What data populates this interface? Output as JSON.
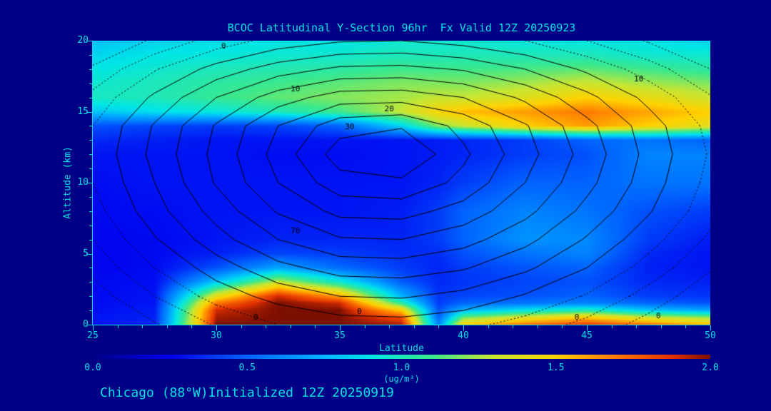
{
  "page": {
    "background": "#000087",
    "text_color": "#00e0e0"
  },
  "title": "BCOC Latitudinal Y-Section 96hr  Fx Valid 12Z 20250923",
  "footer": "Chicago (88°W)Initialized 12Z 20250919",
  "chart_data": {
    "type": "heatmap",
    "title": "BCOC Latitudinal Y-Section 96hr  Fx Valid 12Z 20250923",
    "xlabel": "Latitude",
    "ylabel": "Altitude (km)",
    "xlim": [
      25,
      50
    ],
    "ylim": [
      0,
      20
    ],
    "x_ticks": [
      25,
      30,
      35,
      40,
      45,
      50
    ],
    "y_ticks": [
      0,
      5,
      10,
      15,
      20
    ],
    "x_minor_step": 1,
    "y_minor_step": 1,
    "colorbar": {
      "min": 0,
      "max": 2,
      "ticks": [
        "0.0",
        "0.5",
        "1.0",
        "1.5",
        "2.0"
      ],
      "label": "(ug/m³)"
    },
    "colormap": [
      [
        0.0,
        "#000087"
      ],
      [
        0.125,
        "#0000f0"
      ],
      [
        0.25,
        "#0064ff"
      ],
      [
        0.375,
        "#00b4ff"
      ],
      [
        0.45,
        "#00e6e6"
      ],
      [
        0.55,
        "#3ce88c"
      ],
      [
        0.65,
        "#c8e632"
      ],
      [
        0.75,
        "#ffd200"
      ],
      [
        0.85,
        "#ff7800"
      ],
      [
        0.94,
        "#e13200"
      ],
      [
        1.0,
        "#7d0f00"
      ]
    ],
    "fill": {
      "units": "ug/m3",
      "lats": [
        25,
        27.5,
        30,
        32.5,
        35,
        37.5,
        39,
        40,
        42.5,
        45,
        47.5,
        50
      ],
      "alts": [
        0,
        0.5,
        1,
        1.5,
        2,
        3,
        4,
        5,
        6,
        8,
        10,
        12,
        13,
        14,
        15,
        16,
        17,
        18,
        19,
        20
      ],
      "values": [
        [
          0.3,
          0.35,
          2.0,
          2.0,
          2.0,
          1.95,
          0.6,
          1.5,
          1.7,
          1.85,
          1.7,
          1.55
        ],
        [
          0.3,
          0.33,
          1.95,
          2.0,
          2.0,
          1.8,
          0.5,
          1.15,
          1.35,
          1.5,
          1.3,
          1.2
        ],
        [
          0.28,
          0.32,
          1.9,
          2.0,
          2.0,
          1.5,
          0.45,
          0.75,
          0.9,
          1.0,
          0.8,
          0.7
        ],
        [
          0.28,
          0.3,
          1.7,
          2.0,
          1.9,
          1.05,
          0.4,
          0.5,
          0.55,
          0.6,
          0.5,
          0.45
        ],
        [
          0.27,
          0.3,
          1.4,
          1.9,
          1.6,
          0.75,
          0.38,
          0.42,
          0.45,
          0.5,
          0.4,
          0.38
        ],
        [
          0.27,
          0.28,
          0.8,
          1.3,
          0.95,
          0.48,
          0.35,
          0.38,
          0.42,
          0.45,
          0.35,
          0.33
        ],
        [
          0.26,
          0.27,
          0.45,
          0.7,
          0.52,
          0.4,
          0.34,
          0.4,
          0.46,
          0.5,
          0.33,
          0.3
        ],
        [
          0.26,
          0.27,
          0.33,
          0.42,
          0.4,
          0.36,
          0.36,
          0.45,
          0.55,
          0.6,
          0.35,
          0.3
        ],
        [
          0.26,
          0.27,
          0.3,
          0.34,
          0.34,
          0.34,
          0.4,
          0.5,
          0.65,
          0.62,
          0.4,
          0.32
        ],
        [
          0.27,
          0.28,
          0.3,
          0.3,
          0.3,
          0.32,
          0.4,
          0.5,
          0.6,
          0.55,
          0.45,
          0.4
        ],
        [
          0.28,
          0.3,
          0.3,
          0.3,
          0.3,
          0.3,
          0.34,
          0.4,
          0.5,
          0.5,
          0.55,
          0.55
        ],
        [
          0.3,
          0.3,
          0.3,
          0.28,
          0.28,
          0.3,
          0.32,
          0.34,
          0.4,
          0.45,
          0.6,
          0.6
        ],
        [
          0.35,
          0.33,
          0.3,
          0.3,
          0.3,
          0.3,
          0.32,
          0.34,
          0.4,
          0.5,
          0.55,
          0.5
        ],
        [
          0.45,
          0.42,
          0.4,
          0.42,
          0.5,
          0.85,
          1.2,
          1.3,
          1.5,
          1.62,
          1.5,
          1.4
        ],
        [
          0.8,
          0.88,
          0.92,
          1.0,
          1.1,
          1.3,
          1.48,
          1.55,
          1.62,
          1.7,
          1.6,
          1.5
        ],
        [
          0.98,
          1.0,
          1.08,
          1.15,
          1.2,
          1.25,
          1.3,
          1.3,
          1.38,
          1.5,
          1.42,
          1.32
        ],
        [
          0.95,
          1.0,
          1.05,
          1.1,
          1.15,
          1.2,
          1.2,
          1.2,
          1.25,
          1.32,
          1.25,
          1.2
        ],
        [
          0.9,
          0.95,
          1.0,
          1.02,
          1.05,
          1.1,
          1.1,
          1.1,
          1.12,
          1.15,
          1.1,
          1.05
        ],
        [
          0.85,
          0.9,
          0.92,
          0.95,
          0.95,
          1.0,
          1.0,
          1.0,
          1.0,
          1.0,
          0.95,
          0.95
        ],
        [
          0.8,
          0.85,
          0.88,
          0.9,
          0.9,
          0.95,
          0.95,
          0.95,
          0.92,
          0.9,
          0.9,
          0.85
        ]
      ]
    },
    "contours": {
      "lats": [
        25,
        27.5,
        30,
        32.5,
        35,
        37.5,
        40,
        42.5,
        45,
        47.5,
        50
      ],
      "alts": [
        0,
        2,
        4,
        6,
        8,
        10,
        12,
        14,
        16,
        18,
        20
      ],
      "levels": [
        0,
        10,
        20,
        30,
        40,
        50,
        60,
        70
      ],
      "dashed_levels": [
        -30,
        -20,
        -10
      ],
      "values": [
        [
          -45,
          -31,
          -19,
          -10,
          -5,
          -4,
          -7,
          -14,
          -23,
          -34,
          -47
        ],
        [
          -35,
          -20,
          -6,
          4,
          10,
          11,
          7,
          -1,
          -11,
          -24,
          -37
        ],
        [
          -27,
          -10,
          5,
          17,
          24,
          25,
          21,
          12,
          0,
          -14,
          -29
        ],
        [
          -20,
          -1,
          16,
          30,
          39,
          40,
          34,
          23,
          9,
          -6,
          -22
        ],
        [
          -14,
          6,
          24,
          41,
          53,
          54,
          46,
          33,
          17,
          1,
          -16
        ],
        [
          -10,
          10,
          31,
          50,
          66,
          68,
          57,
          40,
          23,
          5,
          -13
        ],
        [
          -8,
          13,
          33,
          54,
          75,
          80,
          62,
          44,
          26,
          7,
          -11
        ],
        [
          -10,
          11,
          31,
          50,
          66,
          69,
          57,
          41,
          23,
          5,
          -13
        ],
        [
          -17,
          2,
          20,
          35,
          45,
          46,
          40,
          28,
          13,
          -3,
          -19
        ],
        [
          -28,
          -11,
          4,
          15,
          22,
          23,
          19,
          10,
          -2,
          -15,
          -30
        ],
        [
          -43,
          -28,
          -16,
          -6,
          -1,
          0,
          -4,
          -10,
          -20,
          -31,
          -45
        ]
      ],
      "labels": [
        {
          "text": "0",
          "lat": 30.3,
          "alt": 19.6
        },
        {
          "text": "10",
          "lat": 33.2,
          "alt": 16.6
        },
        {
          "text": "20",
          "lat": 37.0,
          "alt": 15.15
        },
        {
          "text": "30",
          "lat": 35.4,
          "alt": 13.9
        },
        {
          "text": "70",
          "lat": 33.2,
          "alt": 6.6
        },
        {
          "text": "10",
          "lat": 47.1,
          "alt": 17.3
        },
        {
          "text": "0",
          "lat": 31.6,
          "alt": 0.5
        },
        {
          "text": "0",
          "lat": 35.8,
          "alt": 0.9
        },
        {
          "text": "0",
          "lat": 44.6,
          "alt": 0.5
        },
        {
          "text": "0",
          "lat": 47.9,
          "alt": 0.6
        }
      ]
    }
  }
}
